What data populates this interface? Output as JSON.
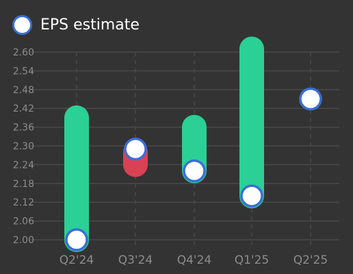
{
  "chart_data": {
    "type": "bar",
    "subtype": "floating-bar-with-markers",
    "legend": {
      "label": "EPS estimate",
      "placement": "top-left"
    },
    "categories": [
      "Q2'24",
      "Q3'24",
      "Q4'24",
      "Q1'25",
      "Q2'25"
    ],
    "ranges": [
      {
        "low": 2.0,
        "high": 2.39,
        "color": "#2ad096"
      },
      {
        "low": 2.24,
        "high": 2.28,
        "color": "#d94255"
      },
      {
        "low": 2.22,
        "high": 2.36,
        "color": "#2ad096"
      },
      {
        "low": 2.14,
        "high": 2.61,
        "color": "#2ad096"
      },
      null
    ],
    "series": [
      {
        "name": "EPS estimate",
        "values": [
          2.0,
          2.29,
          2.22,
          2.14,
          2.45
        ]
      }
    ],
    "ylim": [
      2.0,
      2.6
    ],
    "yticks": [
      "2.00",
      "2.06",
      "2.12",
      "2.18",
      "2.24",
      "2.30",
      "2.36",
      "2.42",
      "2.48",
      "2.54",
      "2.60"
    ],
    "grid": true,
    "colors": {
      "background": "#333333",
      "grid": "#4a4a4a",
      "tick_label": "#8c8c8c",
      "positive_bar": "#2ad096",
      "negative_bar": "#d94255",
      "marker_fill": "#ffffff",
      "marker_stroke": "#3a6fd6"
    }
  }
}
